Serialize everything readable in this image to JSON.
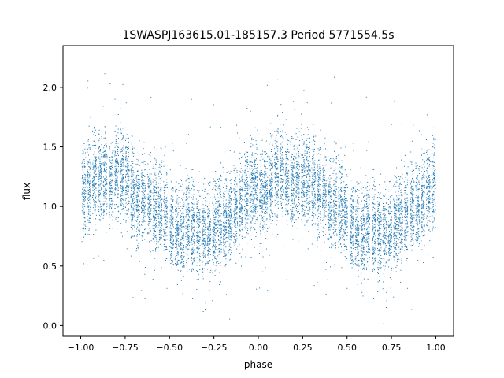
{
  "chart_data": {
    "type": "scatter",
    "title": "1SWASPJ163615.01-185157.3 Period 5771554.5s",
    "xlabel": "phase",
    "ylabel": "flux",
    "xlim": [
      -1.1,
      1.1
    ],
    "ylim": [
      -0.09,
      2.35
    ],
    "xticks": [
      "−1.00",
      "−0.75",
      "−0.50",
      "−0.25",
      "0.00",
      "0.25",
      "0.50",
      "0.75",
      "1.00"
    ],
    "xtick_values": [
      -1.0,
      -0.75,
      -0.5,
      -0.25,
      0.0,
      0.25,
      0.5,
      0.75,
      1.0
    ],
    "yticks": [
      "0.0",
      "0.5",
      "1.0",
      "1.5",
      "2.0"
    ],
    "ytick_values": [
      0.0,
      0.5,
      1.0,
      1.5,
      2.0
    ],
    "grid": false,
    "legend": "none",
    "marker_color": "#1f77b4",
    "series": [
      {
        "points_description": "phase-folded light curve, dense vertical clusters of points mirrored about phase 0",
        "cluster_phases": [
          -0.985,
          -0.955,
          -0.925,
          -0.895,
          -0.865,
          -0.83,
          -0.8,
          -0.77,
          -0.74,
          -0.71,
          -0.68,
          -0.65,
          -0.615,
          -0.585,
          -0.555,
          -0.525,
          -0.49,
          -0.46,
          -0.43,
          -0.4,
          -0.37,
          -0.34,
          -0.31,
          -0.28,
          -0.25,
          -0.22,
          -0.19,
          -0.16,
          -0.13,
          -0.1,
          -0.07,
          -0.04,
          -0.015,
          0.015,
          0.04,
          0.07,
          0.1,
          0.13,
          0.16,
          0.19,
          0.22,
          0.25,
          0.28,
          0.31,
          0.34,
          0.37,
          0.4,
          0.43,
          0.46,
          0.49,
          0.525,
          0.555,
          0.585,
          0.615,
          0.65,
          0.68,
          0.71,
          0.74,
          0.77,
          0.8,
          0.83,
          0.865,
          0.895,
          0.925,
          0.955,
          0.985
        ],
        "cluster_mean_flux": [
          1.15,
          1.18,
          1.22,
          1.25,
          1.26,
          1.2,
          1.28,
          1.3,
          1.22,
          1.08,
          1.06,
          1.08,
          1.05,
          1.0,
          1.0,
          0.95,
          0.85,
          0.82,
          0.82,
          0.88,
          0.8,
          0.8,
          0.78,
          0.8,
          0.82,
          0.88,
          0.9,
          0.92,
          1.0,
          1.05,
          1.1,
          1.15,
          1.15,
          1.1,
          1.15,
          1.2,
          1.28,
          1.3,
          1.25,
          1.2,
          1.26,
          1.25,
          1.22,
          1.18,
          1.15,
          1.12,
          1.0,
          1.05,
          1.0,
          0.95,
          0.85,
          0.82,
          0.8,
          0.82,
          0.8,
          0.78,
          0.8,
          0.82,
          0.85,
          0.9,
          0.95,
          1.0,
          1.02,
          1.08,
          1.12,
          1.15
        ],
        "cluster_spread": 0.18
      }
    ]
  }
}
